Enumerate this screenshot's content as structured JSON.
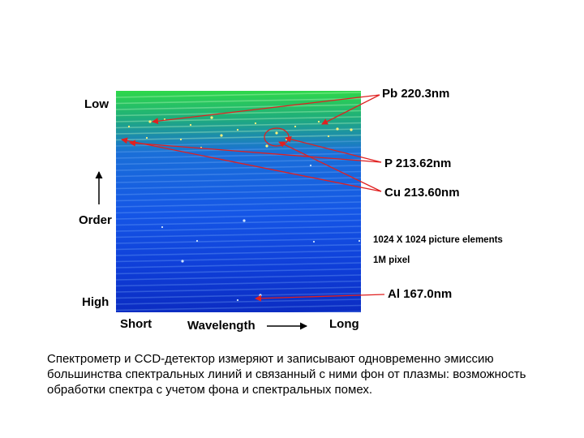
{
  "diagram": {
    "axis": {
      "low": "Low",
      "order": "Order",
      "high": "High",
      "short": "Short",
      "wavelength": "Wavelength",
      "long": "Long"
    },
    "annotations": {
      "pb": "Pb 220.3nm",
      "p": "P 213.62nm",
      "cu": "Cu 213.60nm",
      "resolution": "1024 X 1024 picture elements",
      "pixels": "1M pixel",
      "al": "Al 167.0nm"
    },
    "colors": {
      "arrow": "#e02020",
      "image_top": "#2fd84a",
      "image_bottom": "#0b2cc2"
    }
  },
  "caption": "Спектрометр и CCD-детектор измеряют и записывают одновременно эмиссию большинства спектральных линий и связанный с ними фон от плазмы: возможность обработки спектра с учетом фона и спектральных помех."
}
